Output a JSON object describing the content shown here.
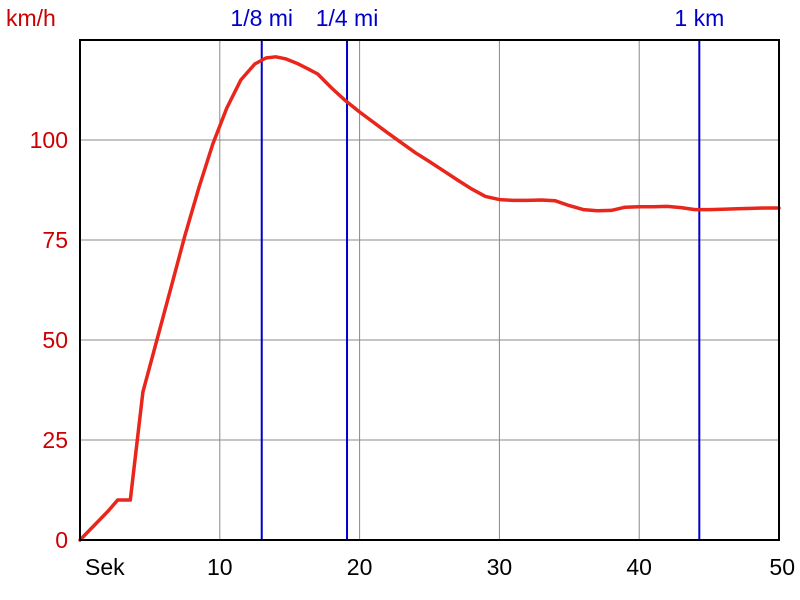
{
  "chart_data": {
    "type": "line",
    "title": "",
    "ylabel": "km/h",
    "xlabel": "Sek",
    "xlim": [
      0,
      50
    ],
    "ylim": [
      0,
      125
    ],
    "grid": true,
    "x_ticks": [
      {
        "value": 10,
        "label": "10"
      },
      {
        "value": 20,
        "label": "20"
      },
      {
        "value": 30,
        "label": "30"
      },
      {
        "value": 40,
        "label": "40"
      },
      {
        "value": 50,
        "label": "50"
      }
    ],
    "y_ticks": [
      {
        "value": 0,
        "label": "0"
      },
      {
        "value": 25,
        "label": "25"
      },
      {
        "value": 50,
        "label": "50"
      },
      {
        "value": 75,
        "label": "75"
      },
      {
        "value": 100,
        "label": "100"
      }
    ],
    "markers": [
      {
        "x": 13.0,
        "label": "1/8 mi"
      },
      {
        "x": 19.1,
        "label": "1/4 mi"
      },
      {
        "x": 44.3,
        "label": "1 km"
      }
    ],
    "series": [
      {
        "color": "#e8261c",
        "x": [
          0,
          1,
          2,
          2.7,
          3.6,
          4.5,
          5.5,
          6.5,
          7.5,
          8.5,
          9.5,
          10.5,
          11.5,
          12.5,
          13.3,
          14.0,
          14.7,
          15.5,
          16.3,
          17.0,
          18.0,
          19.0,
          20.0,
          21.0,
          22.0,
          23.0,
          24.0,
          25.0,
          26.0,
          27.0,
          28.0,
          29.0,
          30.0,
          31.0,
          32.0,
          33.0,
          34.0,
          35.0,
          36.0,
          37.0,
          38.0,
          39.0,
          40.0,
          41.0,
          42.0,
          43.0,
          44.0,
          45.0,
          46.0,
          47.0,
          48.0,
          49.0,
          50.0
        ],
        "y": [
          0,
          3.6,
          7.2,
          10,
          10,
          37,
          50,
          63,
          76,
          88,
          99,
          108,
          115,
          119,
          120.5,
          120.8,
          120.3,
          119.2,
          117.8,
          116.5,
          113.0,
          109.8,
          107.0,
          104.4,
          101.8,
          99.3,
          96.8,
          94.6,
          92.3,
          90.0,
          87.8,
          85.9,
          85.1,
          84.9,
          84.9,
          85.0,
          84.8,
          83.6,
          82.6,
          82.3,
          82.4,
          83.2,
          83.3,
          83.3,
          83.4,
          83.1,
          82.6,
          82.6,
          82.7,
          82.8,
          82.9,
          83.0,
          83.0
        ]
      }
    ],
    "colors": {
      "axis_text": "#cc0000",
      "marker": "#0000cc",
      "grid": "#888888",
      "frame": "#000000"
    }
  }
}
